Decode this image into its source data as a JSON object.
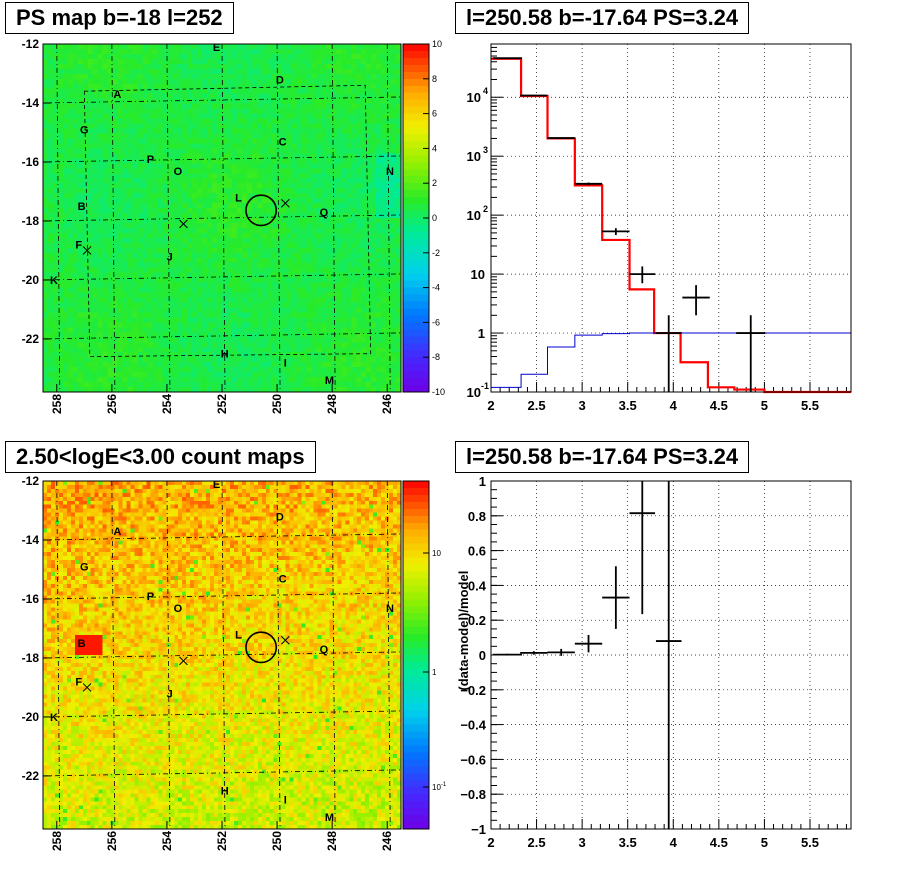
{
  "panels": {
    "ps_map": {
      "title": "PS map b=-18 l=252",
      "colorbar_ticks": [
        "10",
        "8",
        "6",
        "4",
        "2",
        "0",
        "-2",
        "-4",
        "-6",
        "-8",
        "-10"
      ],
      "x_ticks": [
        "258",
        "256",
        "254",
        "252",
        "250",
        "248",
        "246"
      ],
      "y_ticks": [
        "-12",
        "-14",
        "-16",
        "-18",
        "-20",
        "-22"
      ]
    },
    "count_map": {
      "title": "2.50<logE<3.00 count maps",
      "colorbar_ticks": [
        "10",
        "1",
        "10"
      ],
      "colorbar_tick_sup": [
        "",
        "",
        "-1"
      ],
      "x_ticks": [
        "258",
        "256",
        "254",
        "252",
        "250",
        "248",
        "246"
      ],
      "y_ticks": [
        "-12",
        "-14",
        "-16",
        "-18",
        "-20",
        "-22"
      ]
    },
    "spectrum": {
      "title": "l=250.58 b=-17.64 PS=3.24"
    },
    "ratio": {
      "title": "l=250.58 b=-17.64 PS=3.24"
    }
  },
  "source_labels": [
    {
      "name": "A",
      "l": 255.8,
      "b": -13.7
    },
    {
      "name": "B",
      "l": 257.1,
      "b": -17.5
    },
    {
      "name": "C",
      "l": 249.8,
      "b": -15.3
    },
    {
      "name": "D",
      "l": 249.9,
      "b": -13.2
    },
    {
      "name": "E",
      "l": 252.2,
      "b": -12.1
    },
    {
      "name": "F",
      "l": 257.2,
      "b": -18.8
    },
    {
      "name": "G",
      "l": 257.0,
      "b": -14.9
    },
    {
      "name": "H",
      "l": 251.9,
      "b": -22.5
    },
    {
      "name": "I",
      "l": 249.7,
      "b": -22.8
    },
    {
      "name": "J",
      "l": 253.9,
      "b": -19.2
    },
    {
      "name": "K",
      "l": 258.1,
      "b": -20.0
    },
    {
      "name": "L",
      "l": 251.4,
      "b": -17.2
    },
    {
      "name": "M",
      "l": 248.1,
      "b": -23.4
    },
    {
      "name": "N",
      "l": 245.9,
      "b": -16.3
    },
    {
      "name": "O",
      "l": 253.6,
      "b": -16.3
    },
    {
      "name": "P",
      "l": 254.6,
      "b": -15.9
    },
    {
      "name": "Q",
      "l": 248.3,
      "b": -17.7
    }
  ],
  "markers": {
    "circle": {
      "l": 250.58,
      "b": -17.64,
      "radius_deg": 0.55
    },
    "crosses": [
      {
        "l": 249.7,
        "b": -17.4
      },
      {
        "l": 253.4,
        "b": -18.1
      },
      {
        "l": 256.9,
        "b": -19.0
      }
    ]
  },
  "colors": {
    "model_hist": "#ff0000",
    "background_hist": "#0000cc",
    "data_points": "#000000",
    "grid": "#000000"
  },
  "chart_data": [
    {
      "type": "heatmap",
      "title": "PS map b=-18 l=252",
      "xlim": [
        258.5,
        245.5
      ],
      "ylim": [
        -23.8,
        -12
      ],
      "zlim": [
        -10,
        10
      ],
      "xlabel": "",
      "ylabel": "",
      "grid": true
    },
    {
      "type": "heatmap",
      "title": "2.50<logE<3.00 count maps",
      "xlim": [
        258.5,
        245.5
      ],
      "ylim": [
        -23.8,
        -12
      ],
      "zscale": "log",
      "zlim": [
        0.05,
        50
      ],
      "grid": true
    },
    {
      "type": "line",
      "title": "l=250.58 b=-17.64 PS=3.24",
      "xlim": [
        2,
        5.95
      ],
      "ylim": [
        0.1,
        80000
      ],
      "yscale": "log",
      "x_ticks": [
        2,
        2.5,
        3,
        3.5,
        4,
        4.5,
        5,
        5.5
      ],
      "y_ticks": [
        {
          "value": 0.1,
          "base": "10",
          "exp": "-1"
        },
        {
          "value": 1,
          "base": "1",
          "exp": ""
        },
        {
          "value": 10,
          "base": "10",
          "exp": ""
        },
        {
          "value": 100,
          "base": "10",
          "exp": "2"
        },
        {
          "value": 1000,
          "base": "10",
          "exp": "3"
        },
        {
          "value": 10000,
          "base": "10",
          "exp": "4"
        }
      ],
      "grid": true,
      "series": [
        {
          "type": "step",
          "color": "#ff0000",
          "edges": [
            2,
            2.33,
            2.62,
            2.92,
            3.22,
            3.52,
            3.79,
            4.08,
            4.38,
            4.67,
            5.0,
            5.95
          ],
          "values": [
            45000,
            10500,
            2000,
            320,
            38,
            5.5,
            1.0,
            0.32,
            0.12,
            0.11,
            0.1
          ]
        },
        {
          "type": "step",
          "color": "#0000cc",
          "edges": [
            2,
            2.33,
            2.62,
            2.92,
            3.22,
            3.52,
            3.79,
            4.08,
            4.38,
            4.67,
            5.0,
            5.95
          ],
          "values": [
            0.12,
            0.2,
            0.58,
            0.92,
            0.98,
            1.0,
            1.0,
            1.0,
            1.0,
            1.0,
            1.0
          ]
        },
        {
          "type": "errorbar",
          "color": "#000000",
          "points": [
            {
              "x": 2.18,
              "y": 46000,
              "xerr": 0.16,
              "ylo": 45000,
              "yhi": 47000
            },
            {
              "x": 2.47,
              "y": 10700,
              "xerr": 0.15,
              "ylo": 10500,
              "yhi": 10900
            },
            {
              "x": 2.77,
              "y": 2030,
              "xerr": 0.15,
              "ylo": 1990,
              "yhi": 2070
            },
            {
              "x": 3.07,
              "y": 340,
              "xerr": 0.15,
              "ylo": 322,
              "yhi": 358
            },
            {
              "x": 3.37,
              "y": 53,
              "xerr": 0.15,
              "ylo": 46,
              "yhi": 60
            },
            {
              "x": 3.66,
              "y": 10,
              "xerr": 0.14,
              "ylo": 7,
              "yhi": 13.5
            },
            {
              "x": 3.95,
              "y": 1.0,
              "xerr": 0.14,
              "ylo": 0.1,
              "yhi": 2.0
            },
            {
              "x": 4.25,
              "y": 4.0,
              "xerr": 0.15,
              "ylo": 2.0,
              "yhi": 6.5
            },
            {
              "x": 4.85,
              "y": 1.0,
              "xerr": 0.16,
              "ylo": 0.1,
              "yhi": 2.0
            }
          ]
        }
      ]
    },
    {
      "type": "scatter",
      "title": "l=250.58 b=-17.64 PS=3.24",
      "ylabel": "(data-model)/model",
      "xlim": [
        2,
        5.95
      ],
      "ylim": [
        -1,
        1
      ],
      "x_ticks": [
        2,
        2.5,
        3,
        3.5,
        4,
        4.5,
        5,
        5.5
      ],
      "y_ticks": [
        -1,
        -0.8,
        -0.6,
        -0.4,
        -0.2,
        0,
        0.2,
        0.4,
        0.6,
        0.8,
        1
      ],
      "grid": true,
      "points": [
        {
          "x": 2.18,
          "y": 0.002,
          "xerr": 0.16,
          "yerr": 0.005
        },
        {
          "x": 2.47,
          "y": 0.012,
          "xerr": 0.15,
          "yerr": 0.01
        },
        {
          "x": 2.77,
          "y": 0.015,
          "xerr": 0.15,
          "yerr": 0.02
        },
        {
          "x": 3.07,
          "y": 0.065,
          "xerr": 0.15,
          "yerr": 0.05
        },
        {
          "x": 3.37,
          "y": 0.33,
          "xerr": 0.15,
          "yerr": 0.18
        },
        {
          "x": 3.66,
          "y": 0.815,
          "xerr": 0.14,
          "yerr": 0.58
        },
        {
          "x": 3.95,
          "y": 0.08,
          "xerr": 0.14,
          "yerr": 1.5
        }
      ]
    }
  ]
}
